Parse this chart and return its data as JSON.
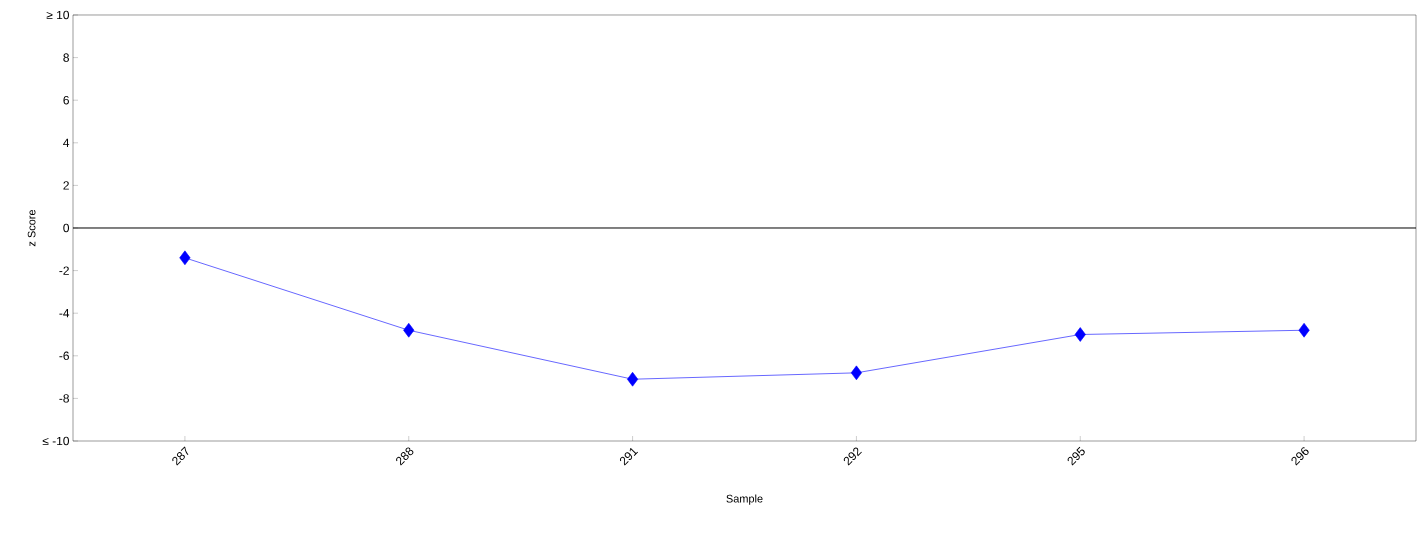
{
  "chart_data": {
    "type": "line",
    "xlabel": "Sample",
    "ylabel": "z Score",
    "categories": [
      "287",
      "288",
      "291",
      "292",
      "295",
      "296"
    ],
    "series": [
      {
        "color": "#0000ff",
        "values": [
          -1.4,
          -4.8,
          -7.1,
          -6.8,
          -5.0,
          -4.8
        ]
      }
    ],
    "ylim": [
      -10,
      10
    ],
    "yticks": [
      {
        "value": -10,
        "label": "≤ -10"
      },
      -8,
      -6,
      -4,
      -2,
      0,
      2,
      4,
      6,
      8,
      {
        "value": 10,
        "label": "≥ 10"
      }
    ],
    "ref_lines": [
      {
        "axis": "y",
        "value": 0,
        "color": "#000000"
      }
    ],
    "marker": "diamond",
    "line_style": "solid"
  }
}
